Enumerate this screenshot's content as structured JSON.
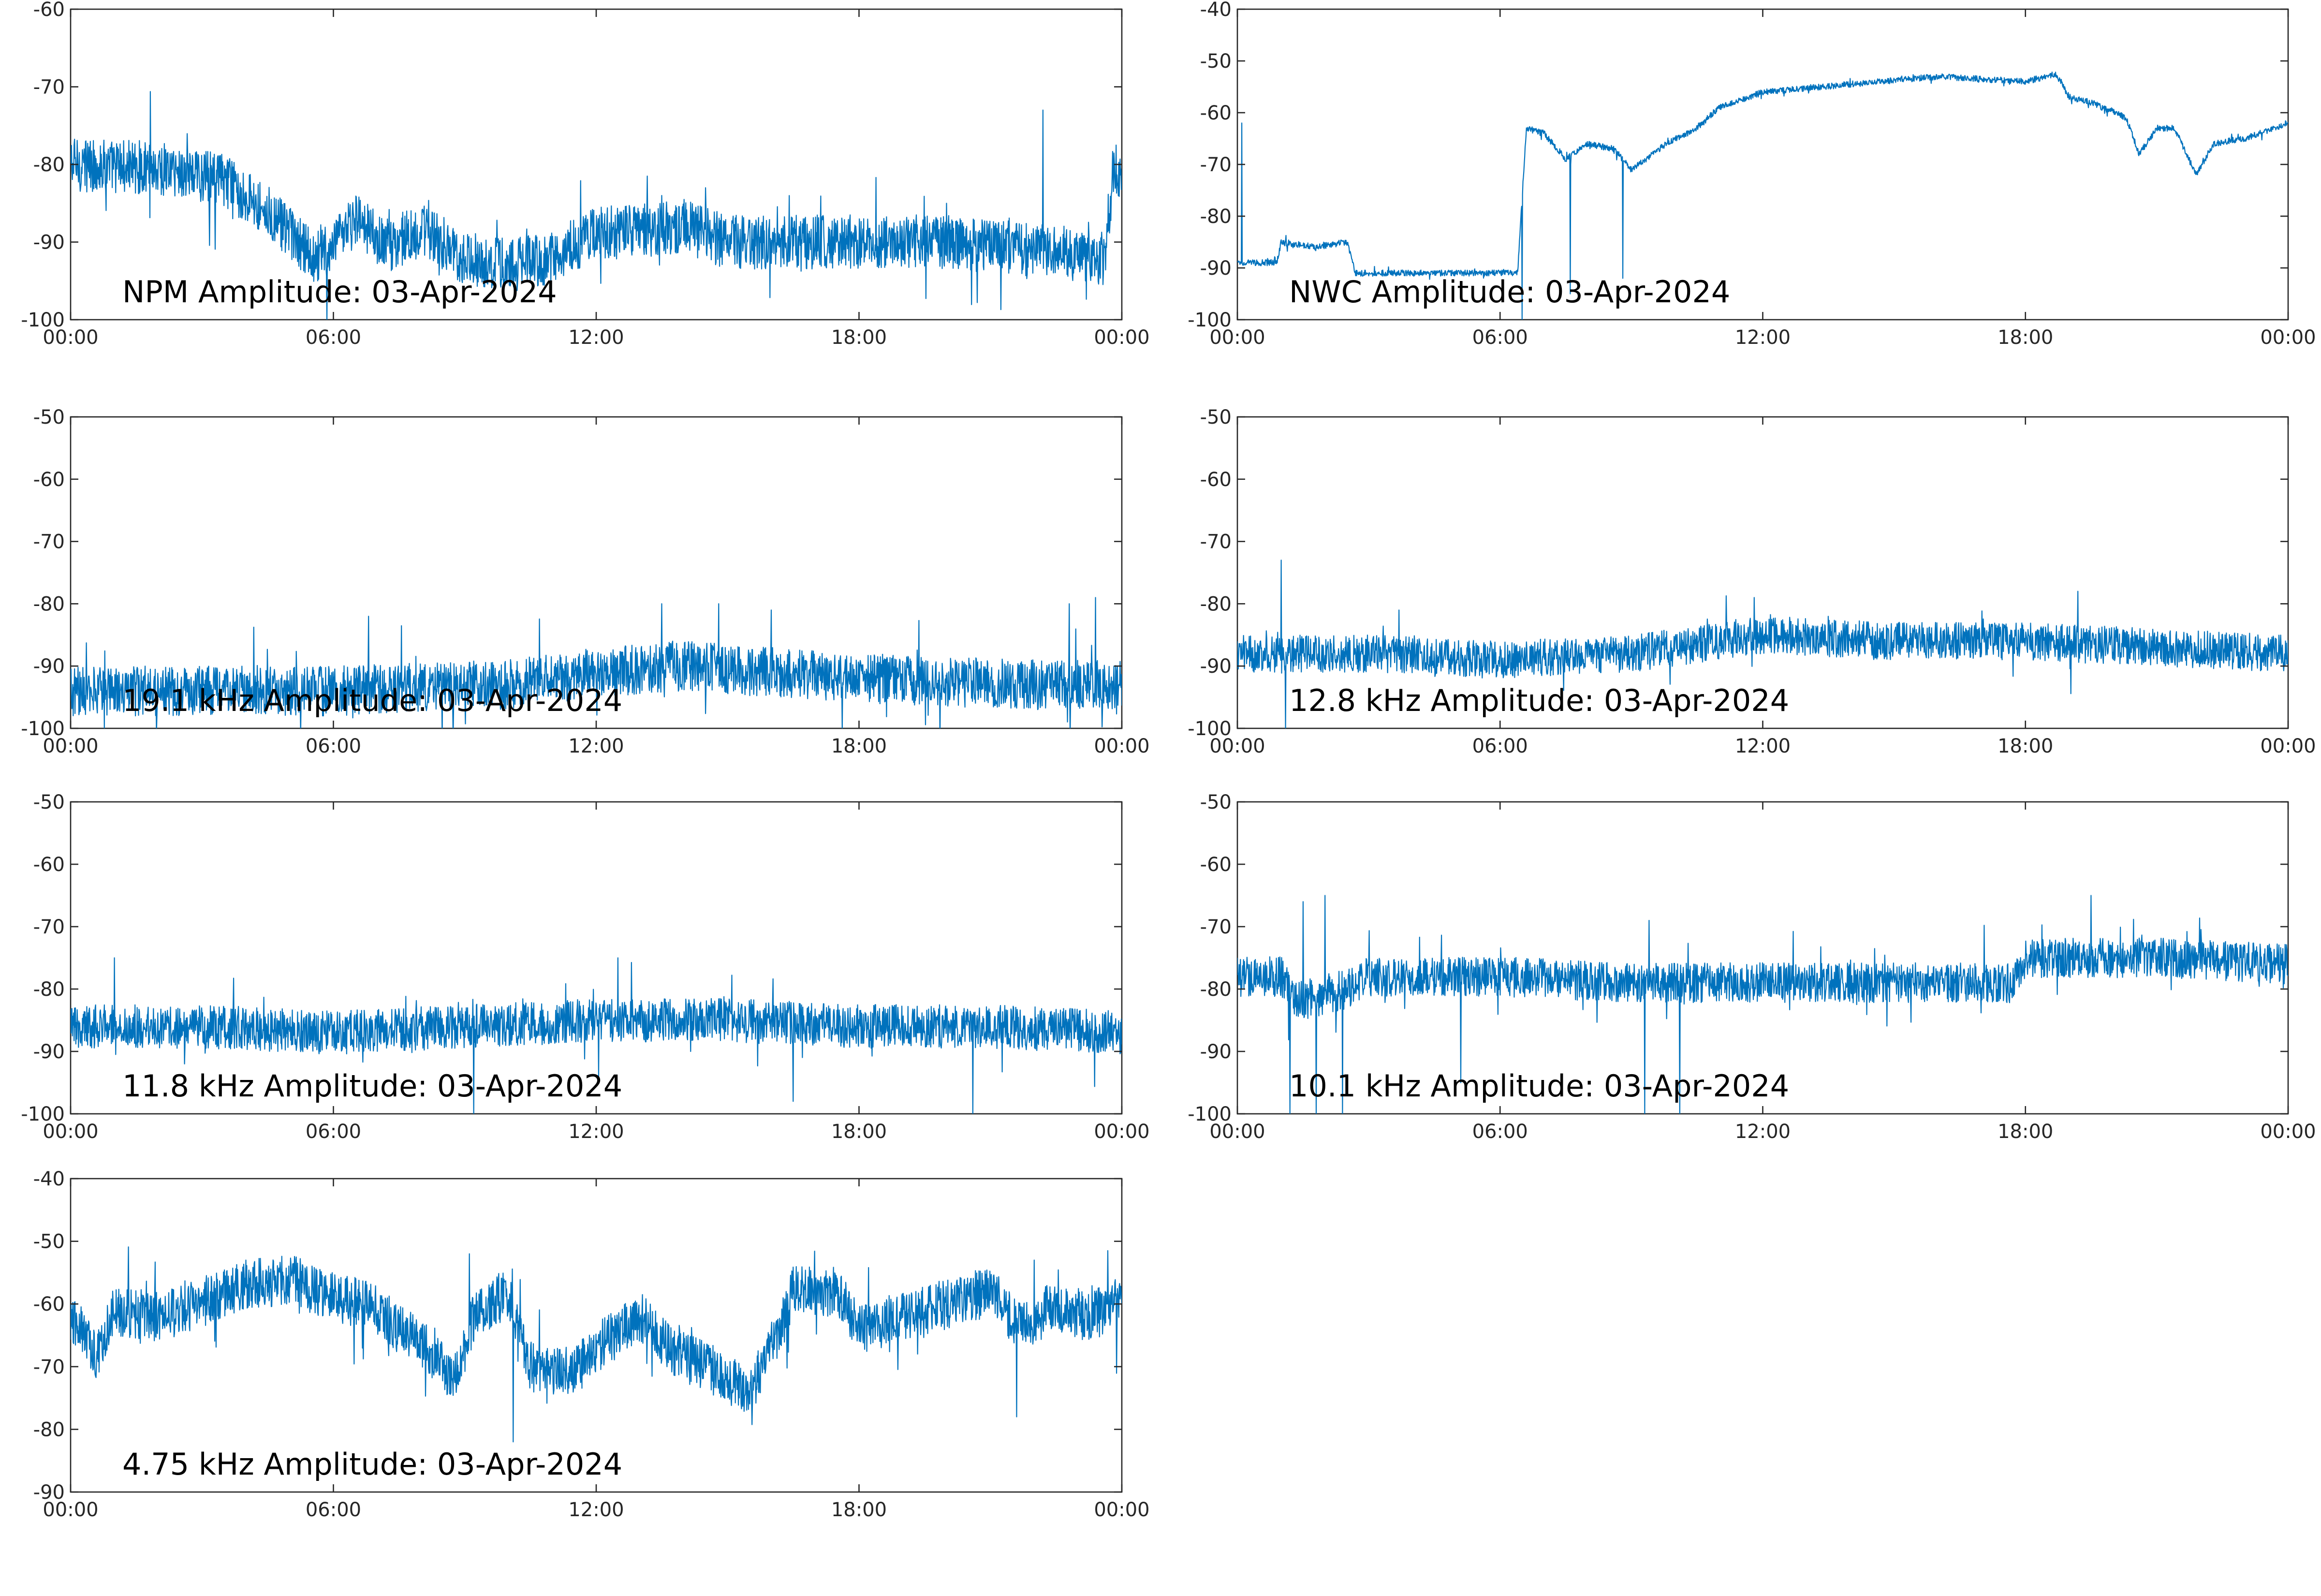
{
  "figure": {
    "series_color": "#0072bd",
    "x_ticks": [
      "00:00",
      "06:00",
      "12:00",
      "18:00",
      "00:00"
    ]
  },
  "chart_data": [
    {
      "type": "line",
      "title": "NPM Amplitude: 03-Apr-2024",
      "xlabel": "",
      "ylabel": "",
      "x_unit": "hours",
      "xlim": [
        0,
        24
      ],
      "ylim": [
        -100,
        -60
      ],
      "y_ticks": [
        -60,
        -70,
        -80,
        -90,
        -100
      ],
      "grid": false,
      "noise": 3.5,
      "trend": [
        [
          0,
          -80
        ],
        [
          2,
          -80.5
        ],
        [
          3.5,
          -82
        ],
        [
          4.5,
          -86
        ],
        [
          5.5,
          -92
        ],
        [
          6,
          -91
        ],
        [
          6.5,
          -87
        ],
        [
          7.2,
          -90.5
        ],
        [
          8,
          -88.5
        ],
        [
          9,
          -92
        ],
        [
          10,
          -93
        ],
        [
          11,
          -92
        ],
        [
          12,
          -89
        ],
        [
          14,
          -88
        ],
        [
          15,
          -90
        ],
        [
          18,
          -90
        ],
        [
          20,
          -90
        ],
        [
          22,
          -91
        ],
        [
          23.6,
          -92
        ],
        [
          23.8,
          -81
        ],
        [
          24,
          -81
        ]
      ],
      "spikes": [
        [
          22.2,
          -73
        ],
        [
          14.5,
          -83
        ],
        [
          13.5,
          -84
        ],
        [
          20,
          -85
        ]
      ]
    },
    {
      "type": "line",
      "title": "NWC Amplitude: 03-Apr-2024",
      "xlabel": "",
      "ylabel": "",
      "x_unit": "hours",
      "xlim": [
        0,
        24
      ],
      "ylim": [
        -100,
        -40
      ],
      "y_ticks": [
        -40,
        -50,
        -60,
        -70,
        -80,
        -90,
        -100
      ],
      "grid": false,
      "noise": 0.6,
      "trend": [
        [
          0,
          -89
        ],
        [
          0.9,
          -89
        ],
        [
          1,
          -85
        ],
        [
          1.8,
          -86
        ],
        [
          2.5,
          -85
        ],
        [
          2.7,
          -91
        ],
        [
          6.4,
          -91
        ],
        [
          6.6,
          -63
        ],
        [
          7,
          -64
        ],
        [
          7.5,
          -69
        ],
        [
          8,
          -66
        ],
        [
          8.6,
          -67
        ],
        [
          9,
          -71
        ],
        [
          9.8,
          -66
        ],
        [
          10.5,
          -63
        ],
        [
          11,
          -59
        ],
        [
          12,
          -56
        ],
        [
          14,
          -54.5
        ],
        [
          16,
          -53
        ],
        [
          18,
          -54
        ],
        [
          18.7,
          -52.5
        ],
        [
          19,
          -57
        ],
        [
          19.5,
          -58
        ],
        [
          20.3,
          -61
        ],
        [
          20.6,
          -68
        ],
        [
          21,
          -63
        ],
        [
          21.4,
          -63
        ],
        [
          21.9,
          -72
        ],
        [
          22.3,
          -66
        ],
        [
          23,
          -65
        ],
        [
          24,
          -62
        ]
      ],
      "spikes": [
        [
          6.5,
          -100
        ],
        [
          7.6,
          -95
        ],
        [
          8.8,
          -92
        ],
        [
          0.1,
          -62
        ]
      ]
    },
    {
      "type": "line",
      "title": "19.1 kHz Amplitude: 03-Apr-2024",
      "xlabel": "",
      "ylabel": "",
      "x_unit": "hours",
      "xlim": [
        0,
        24
      ],
      "ylim": [
        -100,
        -50
      ],
      "y_ticks": [
        -50,
        -60,
        -70,
        -80,
        -90,
        -100
      ],
      "grid": false,
      "noise": 4,
      "trend": [
        [
          0,
          -94
        ],
        [
          6,
          -94
        ],
        [
          10,
          -93
        ],
        [
          12,
          -91
        ],
        [
          14,
          -90
        ],
        [
          18,
          -92
        ],
        [
          22,
          -93
        ],
        [
          24,
          -93
        ]
      ],
      "spikes": [
        [
          6.8,
          -82
        ],
        [
          13.5,
          -80
        ],
        [
          14.8,
          -80
        ],
        [
          23.4,
          -79
        ],
        [
          22.8,
          -80
        ],
        [
          16,
          -81
        ]
      ]
    },
    {
      "type": "line",
      "title": "12.8 kHz Amplitude: 03-Apr-2024",
      "xlabel": "",
      "ylabel": "",
      "x_unit": "hours",
      "xlim": [
        0,
        24
      ],
      "ylim": [
        -100,
        -50
      ],
      "y_ticks": [
        -50,
        -60,
        -70,
        -80,
        -90,
        -100
      ],
      "grid": false,
      "noise": 3,
      "trend": [
        [
          0,
          -88
        ],
        [
          3,
          -88
        ],
        [
          6,
          -89
        ],
        [
          9,
          -88
        ],
        [
          12,
          -85
        ],
        [
          15,
          -86
        ],
        [
          18,
          -86
        ],
        [
          21,
          -87
        ],
        [
          24,
          -88
        ]
      ],
      "spikes": [
        [
          1,
          -73
        ],
        [
          1.1,
          -100
        ],
        [
          11.8,
          -79
        ],
        [
          19.2,
          -78
        ]
      ]
    },
    {
      "type": "line",
      "title": "11.8 kHz Amplitude: 03-Apr-2024",
      "xlabel": "",
      "ylabel": "",
      "x_unit": "hours",
      "xlim": [
        0,
        24
      ],
      "ylim": [
        -100,
        -50
      ],
      "y_ticks": [
        -50,
        -60,
        -70,
        -80,
        -90,
        -100
      ],
      "grid": false,
      "noise": 3.5,
      "trend": [
        [
          0,
          -86
        ],
        [
          3,
          -86
        ],
        [
          6,
          -87
        ],
        [
          9,
          -86
        ],
        [
          12,
          -85
        ],
        [
          15,
          -85
        ],
        [
          18,
          -86
        ],
        [
          21,
          -86
        ],
        [
          24,
          -87
        ]
      ],
      "spikes": [
        [
          1,
          -75
        ],
        [
          12.5,
          -75
        ],
        [
          9.2,
          -100
        ],
        [
          16.5,
          -98
        ],
        [
          20.6,
          -100
        ],
        [
          2.6,
          -92
        ]
      ]
    },
    {
      "type": "line",
      "title": "10.1 kHz Amplitude: 03-Apr-2024",
      "xlabel": "",
      "ylabel": "",
      "x_unit": "hours",
      "xlim": [
        0,
        24
      ],
      "ylim": [
        -100,
        -50
      ],
      "y_ticks": [
        -50,
        -60,
        -70,
        -80,
        -90,
        -100
      ],
      "grid": false,
      "noise": 3.2,
      "trend": [
        [
          0,
          -78
        ],
        [
          1,
          -78
        ],
        [
          1.4,
          -82
        ],
        [
          2.5,
          -80
        ],
        [
          3,
          -78
        ],
        [
          6,
          -78
        ],
        [
          9,
          -79
        ],
        [
          12,
          -79
        ],
        [
          15,
          -79
        ],
        [
          17.7,
          -79
        ],
        [
          18,
          -75
        ],
        [
          21,
          -75
        ],
        [
          24,
          -76
        ]
      ],
      "spikes": [
        [
          1.2,
          -100
        ],
        [
          1.8,
          -100
        ],
        [
          2.4,
          -100
        ],
        [
          1.5,
          -66
        ],
        [
          2,
          -65
        ],
        [
          9.3,
          -100
        ],
        [
          9.4,
          -69
        ],
        [
          10.1,
          -100
        ],
        [
          5.1,
          -95
        ],
        [
          19.5,
          -65
        ]
      ]
    },
    {
      "type": "line",
      "title": "4.75 kHz Amplitude: 03-Apr-2024",
      "xlabel": "",
      "ylabel": "",
      "x_unit": "hours",
      "xlim": [
        0,
        24
      ],
      "ylim": [
        -90,
        -40
      ],
      "y_ticks": [
        -40,
        -50,
        -60,
        -70,
        -80,
        -90
      ],
      "grid": false,
      "noise": 4,
      "trend": [
        [
          0,
          -62
        ],
        [
          0.6,
          -68
        ],
        [
          1,
          -61
        ],
        [
          2,
          -62
        ],
        [
          3,
          -60
        ],
        [
          4,
          -57
        ],
        [
          5,
          -56
        ],
        [
          6,
          -59
        ],
        [
          6.8,
          -60
        ],
        [
          7.5,
          -64
        ],
        [
          8,
          -66
        ],
        [
          8.8,
          -72
        ],
        [
          9.2,
          -62
        ],
        [
          10,
          -58
        ],
        [
          10.5,
          -70
        ],
        [
          11.5,
          -71
        ],
        [
          12,
          -67
        ],
        [
          13,
          -62
        ],
        [
          13.8,
          -68
        ],
        [
          14.5,
          -70
        ],
        [
          15.5,
          -74
        ],
        [
          16,
          -67
        ],
        [
          16.5,
          -58
        ],
        [
          17.5,
          -58
        ],
        [
          18,
          -64
        ],
        [
          19,
          -62
        ],
        [
          20,
          -60
        ],
        [
          21,
          -58
        ],
        [
          21.7,
          -64
        ],
        [
          22.5,
          -60
        ],
        [
          23.2,
          -62
        ],
        [
          24,
          -60
        ]
      ],
      "spikes": [
        [
          10.1,
          -82
        ],
        [
          9.1,
          -52
        ],
        [
          4,
          -53
        ],
        [
          22,
          -53
        ],
        [
          21.6,
          -78
        ]
      ]
    }
  ]
}
